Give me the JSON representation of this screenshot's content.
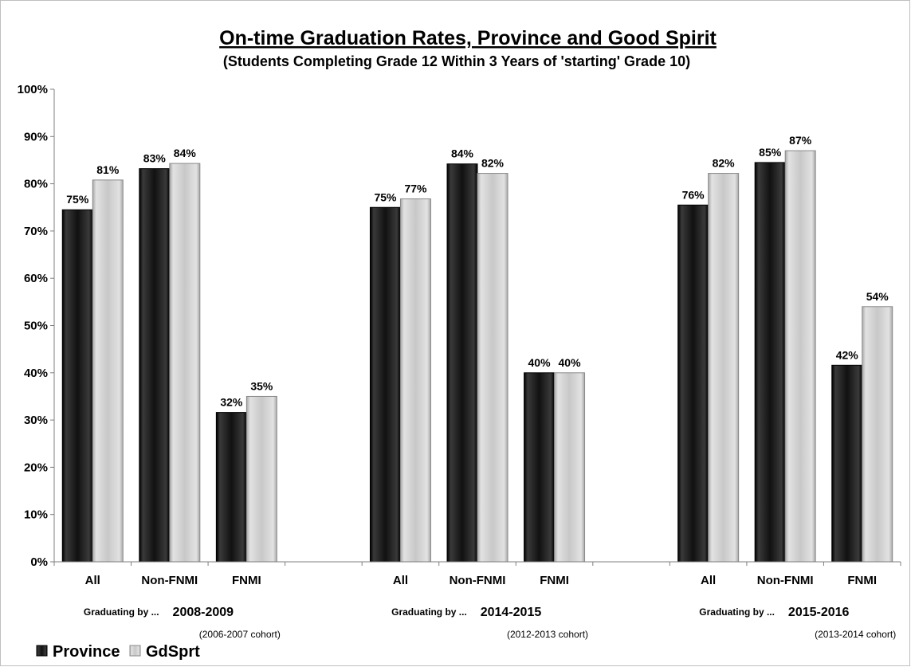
{
  "chart_data": {
    "type": "bar",
    "title": "On-time Graduation Rates, Province and Good Spirit",
    "subtitle": "(Students Completing Grade 12 Within 3 Years of 'starting' Grade 10)",
    "ylim": [
      0,
      100
    ],
    "y_ticks": [
      "0%",
      "10%",
      "20%",
      "30%",
      "40%",
      "50%",
      "60%",
      "70%",
      "80%",
      "90%",
      "100%"
    ],
    "grid": false,
    "legend_position": "bottom-left",
    "groups": [
      {
        "prefix": "Graduating by ...",
        "year": "2008-2009",
        "cohort": "(2006-2007 cohort)",
        "categories": [
          "All",
          "Non-FNMI",
          "FNMI"
        ],
        "series": [
          {
            "name": "Province",
            "values": [
              74.5,
              83.2,
              31.6
            ],
            "labels": [
              "75%",
              "83%",
              "32%"
            ]
          },
          {
            "name": "GdSprt",
            "values": [
              80.8,
              84.3,
              35.0
            ],
            "labels": [
              "81%",
              "84%",
              "35%"
            ]
          }
        ]
      },
      {
        "prefix": "Graduating by ...",
        "year": "2014-2015",
        "cohort": "(2012-2013 cohort)",
        "categories": [
          "All",
          "Non-FNMI",
          "FNMI"
        ],
        "series": [
          {
            "name": "Province",
            "values": [
              75.0,
              84.2,
              40.0
            ],
            "labels": [
              "75%",
              "84%",
              "40%"
            ]
          },
          {
            "name": "GdSprt",
            "values": [
              76.8,
              82.2,
              40.0
            ],
            "labels": [
              "77%",
              "82%",
              "40%"
            ]
          }
        ]
      },
      {
        "prefix": "Graduating by ...",
        "year": "2015-2016",
        "cohort": "(2013-2014 cohort)",
        "categories": [
          "All",
          "Non-FNMI",
          "FNMI"
        ],
        "series": [
          {
            "name": "Province",
            "values": [
              75.5,
              84.5,
              41.6
            ],
            "labels": [
              "76%",
              "85%",
              "42%"
            ]
          },
          {
            "name": "GdSprt",
            "values": [
              82.2,
              87.0,
              54.0
            ],
            "labels": [
              "82%",
              "87%",
              "54%"
            ]
          }
        ]
      }
    ],
    "legend": [
      {
        "name": "Province",
        "color": "#111111"
      },
      {
        "name": "GdSprt",
        "color": "#c8c8c8"
      }
    ],
    "colors": {
      "province": "#111111",
      "gdsprt": "#c8c8c8"
    }
  }
}
